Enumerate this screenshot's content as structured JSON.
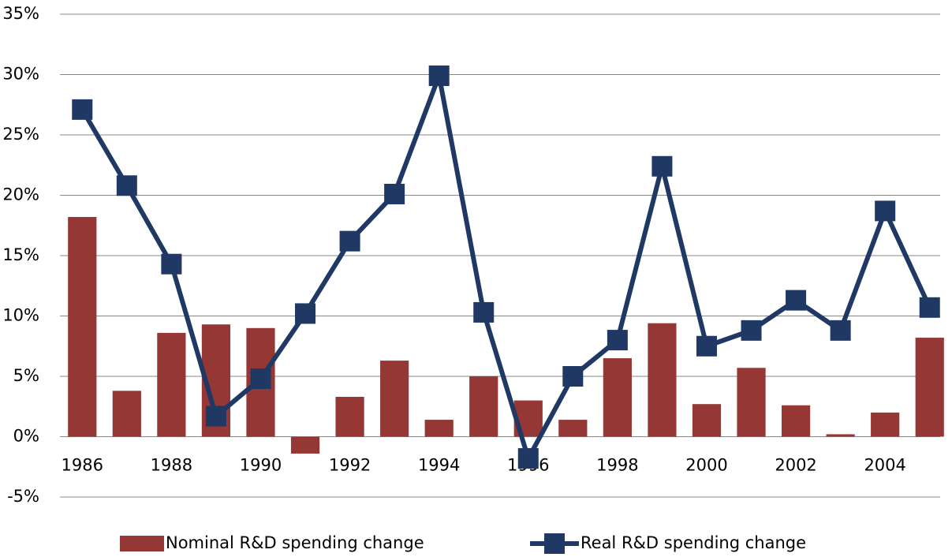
{
  "chart_data": {
    "type": "bar-line",
    "categories": [
      "1986",
      null,
      "1988",
      null,
      "1990",
      null,
      "1992",
      null,
      "1994",
      null,
      "1996",
      null,
      "1998",
      null,
      "2000",
      null,
      "2002",
      null,
      "2004",
      null
    ],
    "series": [
      {
        "name": "Nominal R&D spending change",
        "type": "bar",
        "color": "#953735",
        "values": [
          18.2,
          3.8,
          8.6,
          9.3,
          9.0,
          -1.4,
          3.3,
          6.3,
          1.4,
          5.0,
          3.0,
          1.4,
          6.5,
          9.4,
          2.7,
          5.7,
          2.6,
          0.2,
          2.0,
          8.2
        ]
      },
      {
        "name": "Real R&D spending change",
        "type": "line",
        "color": "#1f3864",
        "values": [
          27.1,
          20.8,
          14.3,
          1.7,
          4.8,
          10.2,
          16.2,
          20.1,
          29.9,
          10.3,
          -1.8,
          5.0,
          8.0,
          22.4,
          7.5,
          8.8,
          11.3,
          8.8,
          18.7,
          10.7
        ]
      }
    ],
    "ylim": [
      -5,
      35
    ],
    "yticks": [
      {
        "value": -5,
        "label": "-5%"
      },
      {
        "value": 0,
        "label": "0%"
      },
      {
        "value": 5,
        "label": "5%"
      },
      {
        "value": 10,
        "label": "10%"
      },
      {
        "value": 15,
        "label": "15%"
      },
      {
        "value": 20,
        "label": "20%"
      },
      {
        "value": 25,
        "label": "25%"
      },
      {
        "value": 30,
        "label": "30%"
      },
      {
        "value": 35,
        "label": "35%"
      }
    ],
    "grid": true,
    "legend": "bottom"
  }
}
